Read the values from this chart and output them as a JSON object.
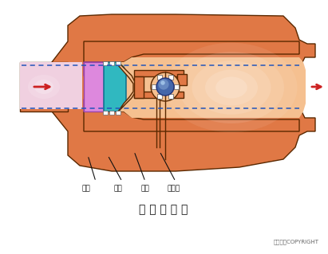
{
  "title": "凸 轮 挠 曲 阀",
  "copyright": "东方仿真COPYRIGHT",
  "labels": [
    "阀座",
    "阀芯",
    "挠臀",
    "旋转轴"
  ],
  "bg_color": "#ffffff",
  "body_color": "#E07845",
  "body_dark": "#C06030",
  "body_edge": "#5A2800",
  "inner_light": "#F5C090",
  "inner_pale": "#FAE0C8",
  "pink_color": "#DD88DD",
  "cyan_color": "#30B8C0",
  "blue_ball": "#4466AA",
  "blue_ball_hi": "#7799CC",
  "arrow_color": "#CC2222",
  "dash_color": "#2255BB",
  "annot_line": "#111111"
}
